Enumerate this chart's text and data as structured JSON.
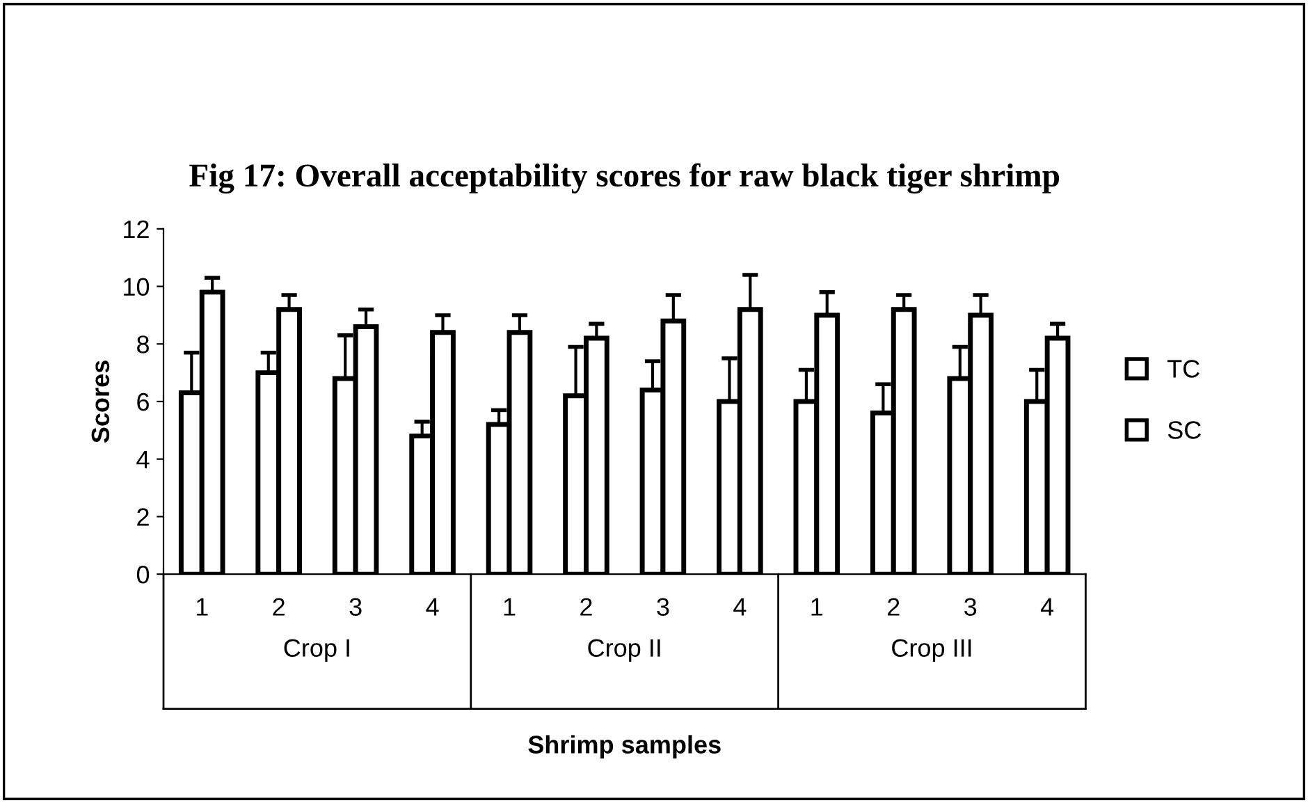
{
  "chart_data": {
    "type": "bar",
    "title": "Fig 17: Overall acceptability scores for raw black tiger shrimp",
    "xlabel": "Shrimp samples",
    "ylabel": "Scores",
    "categories": [
      "1",
      "2",
      "3",
      "4",
      "1",
      "2",
      "3",
      "4",
      "1",
      "2",
      "3",
      "4"
    ],
    "annotations": [
      "Crop I",
      "Crop II",
      "Crop III"
    ],
    "series": [
      {
        "name": "TC",
        "color": "#ffffff",
        "values": [
          6.3,
          7.0,
          6.8,
          4.8,
          5.2,
          6.2,
          6.4,
          6.0,
          6.0,
          5.6,
          6.8,
          6.0
        ],
        "errors": [
          1.4,
          0.7,
          1.5,
          0.5,
          0.5,
          1.7,
          1.0,
          1.5,
          1.1,
          1.0,
          1.1,
          1.1
        ]
      },
      {
        "name": "SC",
        "color": "#ffffff",
        "values": [
          9.8,
          9.2,
          8.6,
          8.4,
          8.4,
          8.2,
          8.8,
          9.2,
          9.0,
          9.2,
          9.0,
          8.2
        ],
        "errors": [
          0.5,
          0.5,
          0.6,
          0.6,
          0.6,
          0.5,
          0.9,
          1.2,
          0.8,
          0.5,
          0.7,
          0.5
        ]
      }
    ],
    "ylim": [
      0,
      12
    ],
    "yticks": [
      0,
      2,
      4,
      6,
      8,
      10,
      12
    ],
    "grid": false,
    "legend": "right"
  }
}
